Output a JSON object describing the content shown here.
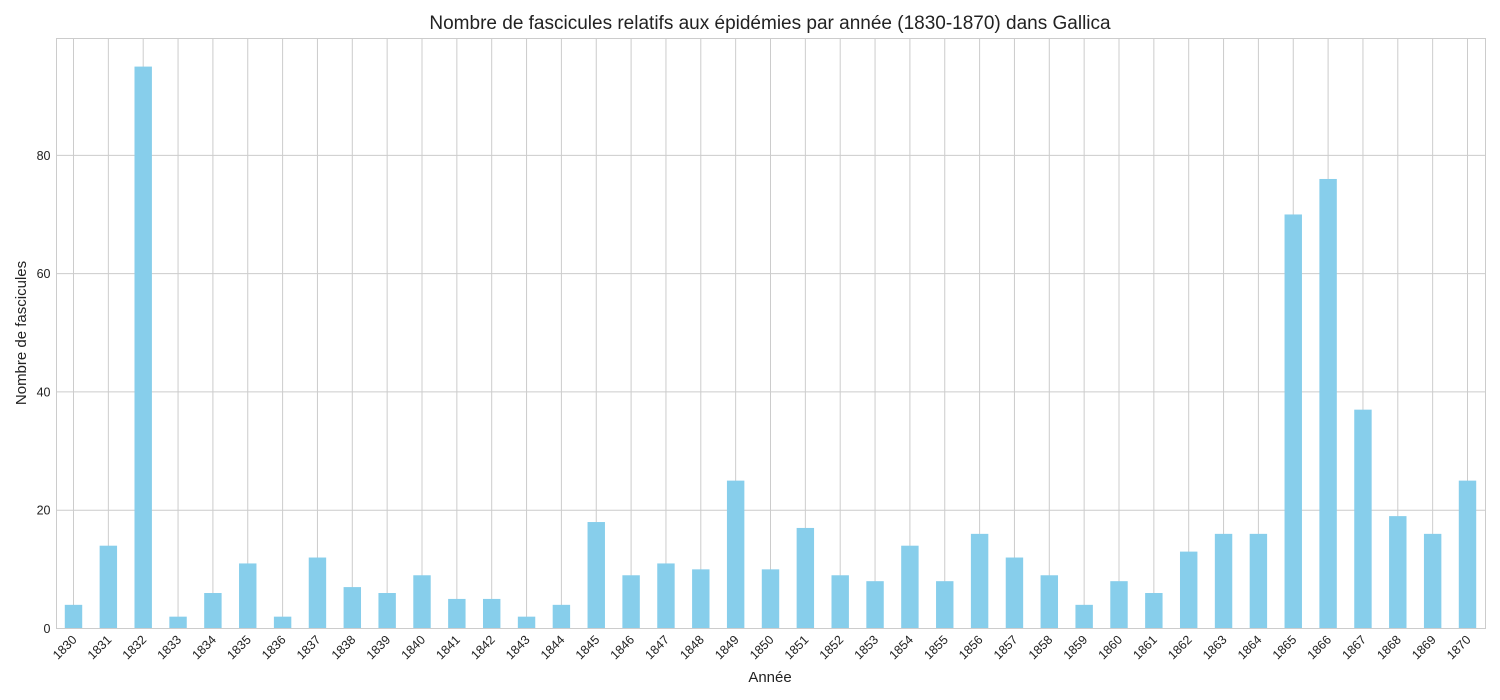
{
  "chart_data": {
    "type": "bar",
    "title": "Nombre de fascicules relatifs aux épidémies par année (1830-1870) dans Gallica",
    "xlabel": "Année",
    "ylabel": "Nombre de fascicules",
    "categories": [
      "1830",
      "1831",
      "1832",
      "1833",
      "1834",
      "1835",
      "1836",
      "1837",
      "1838",
      "1839",
      "1840",
      "1841",
      "1842",
      "1843",
      "1844",
      "1845",
      "1846",
      "1847",
      "1848",
      "1849",
      "1850",
      "1851",
      "1852",
      "1853",
      "1854",
      "1855",
      "1856",
      "1857",
      "1858",
      "1859",
      "1860",
      "1861",
      "1862",
      "1863",
      "1864",
      "1865",
      "1866",
      "1867",
      "1868",
      "1869",
      "1870"
    ],
    "values": [
      4,
      14,
      95,
      2,
      6,
      11,
      2,
      12,
      7,
      6,
      9,
      5,
      5,
      2,
      4,
      18,
      9,
      11,
      10,
      25,
      10,
      17,
      9,
      8,
      14,
      8,
      16,
      12,
      9,
      4,
      8,
      6,
      13,
      16,
      16,
      70,
      76,
      37,
      19,
      16,
      25
    ],
    "ylim": [
      0,
      99.75
    ],
    "yticks": [
      0,
      20,
      40,
      60,
      80
    ],
    "grid": true,
    "legend": "none",
    "bar_color": "#87ceeb",
    "grid_color": "#cccccc"
  }
}
